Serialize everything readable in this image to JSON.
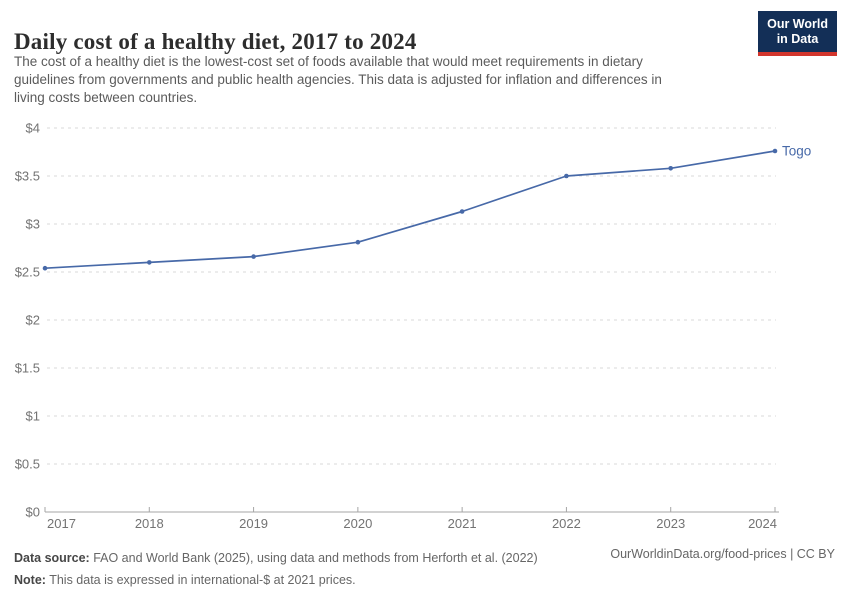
{
  "header": {
    "title": "Daily cost of a healthy diet, 2017 to 2024",
    "subtitle_lines": [
      "The cost of a healthy diet is the lowest-cost set of foods available that would meet requirements in dietary",
      "guidelines from governments and public health agencies. This data is adjusted for inflation and differences in",
      "living costs between countries."
    ],
    "logo": {
      "line1": "Our World",
      "line2": "in Data"
    }
  },
  "chart_data": {
    "type": "line",
    "title": "Daily cost of a healthy diet, 2017 to 2024",
    "x": [
      2017,
      2018,
      2019,
      2020,
      2021,
      2022,
      2023,
      2024
    ],
    "x_tick_labels": [
      "2017",
      "2018",
      "2019",
      "2020",
      "2021",
      "2022",
      "2023",
      "2024"
    ],
    "series": [
      {
        "name": "Togo",
        "color": "#4769a8",
        "values": [
          2.54,
          2.6,
          2.66,
          2.81,
          3.13,
          3.5,
          3.58,
          3.76
        ]
      }
    ],
    "ylim": [
      0,
      4
    ],
    "ytick_step": 0.5,
    "y_tick_prefix": "$",
    "y_tick_labels": [
      "$0",
      "$0.5",
      "$1",
      "$1.5",
      "$2",
      "$2.5",
      "$3",
      "$3.5",
      "$4"
    ],
    "grid": "horizontal-dashed",
    "legend": "line-end-label",
    "end_label": "Togo"
  },
  "footer": {
    "datasource_label": "Data source:",
    "datasource_text": " FAO and World Bank (2025), using data and methods from Herforth et al. (2022)",
    "note_label": "Note:",
    "note_text": " This data is expressed in international-$ at 2021 prices.",
    "credit": "OurWorldinData.org/food-prices | CC BY"
  },
  "colors": {
    "accent_line": "#4769a8",
    "logo_bg": "#132f57",
    "logo_red": "#d2352c",
    "grid": "#d9d9d9",
    "axis": "#a5a5a5",
    "tick_label": "#737373",
    "title_text": "#2d2d2d",
    "subtitle_text": "#5b5b5b",
    "footer_text": "#666666"
  }
}
